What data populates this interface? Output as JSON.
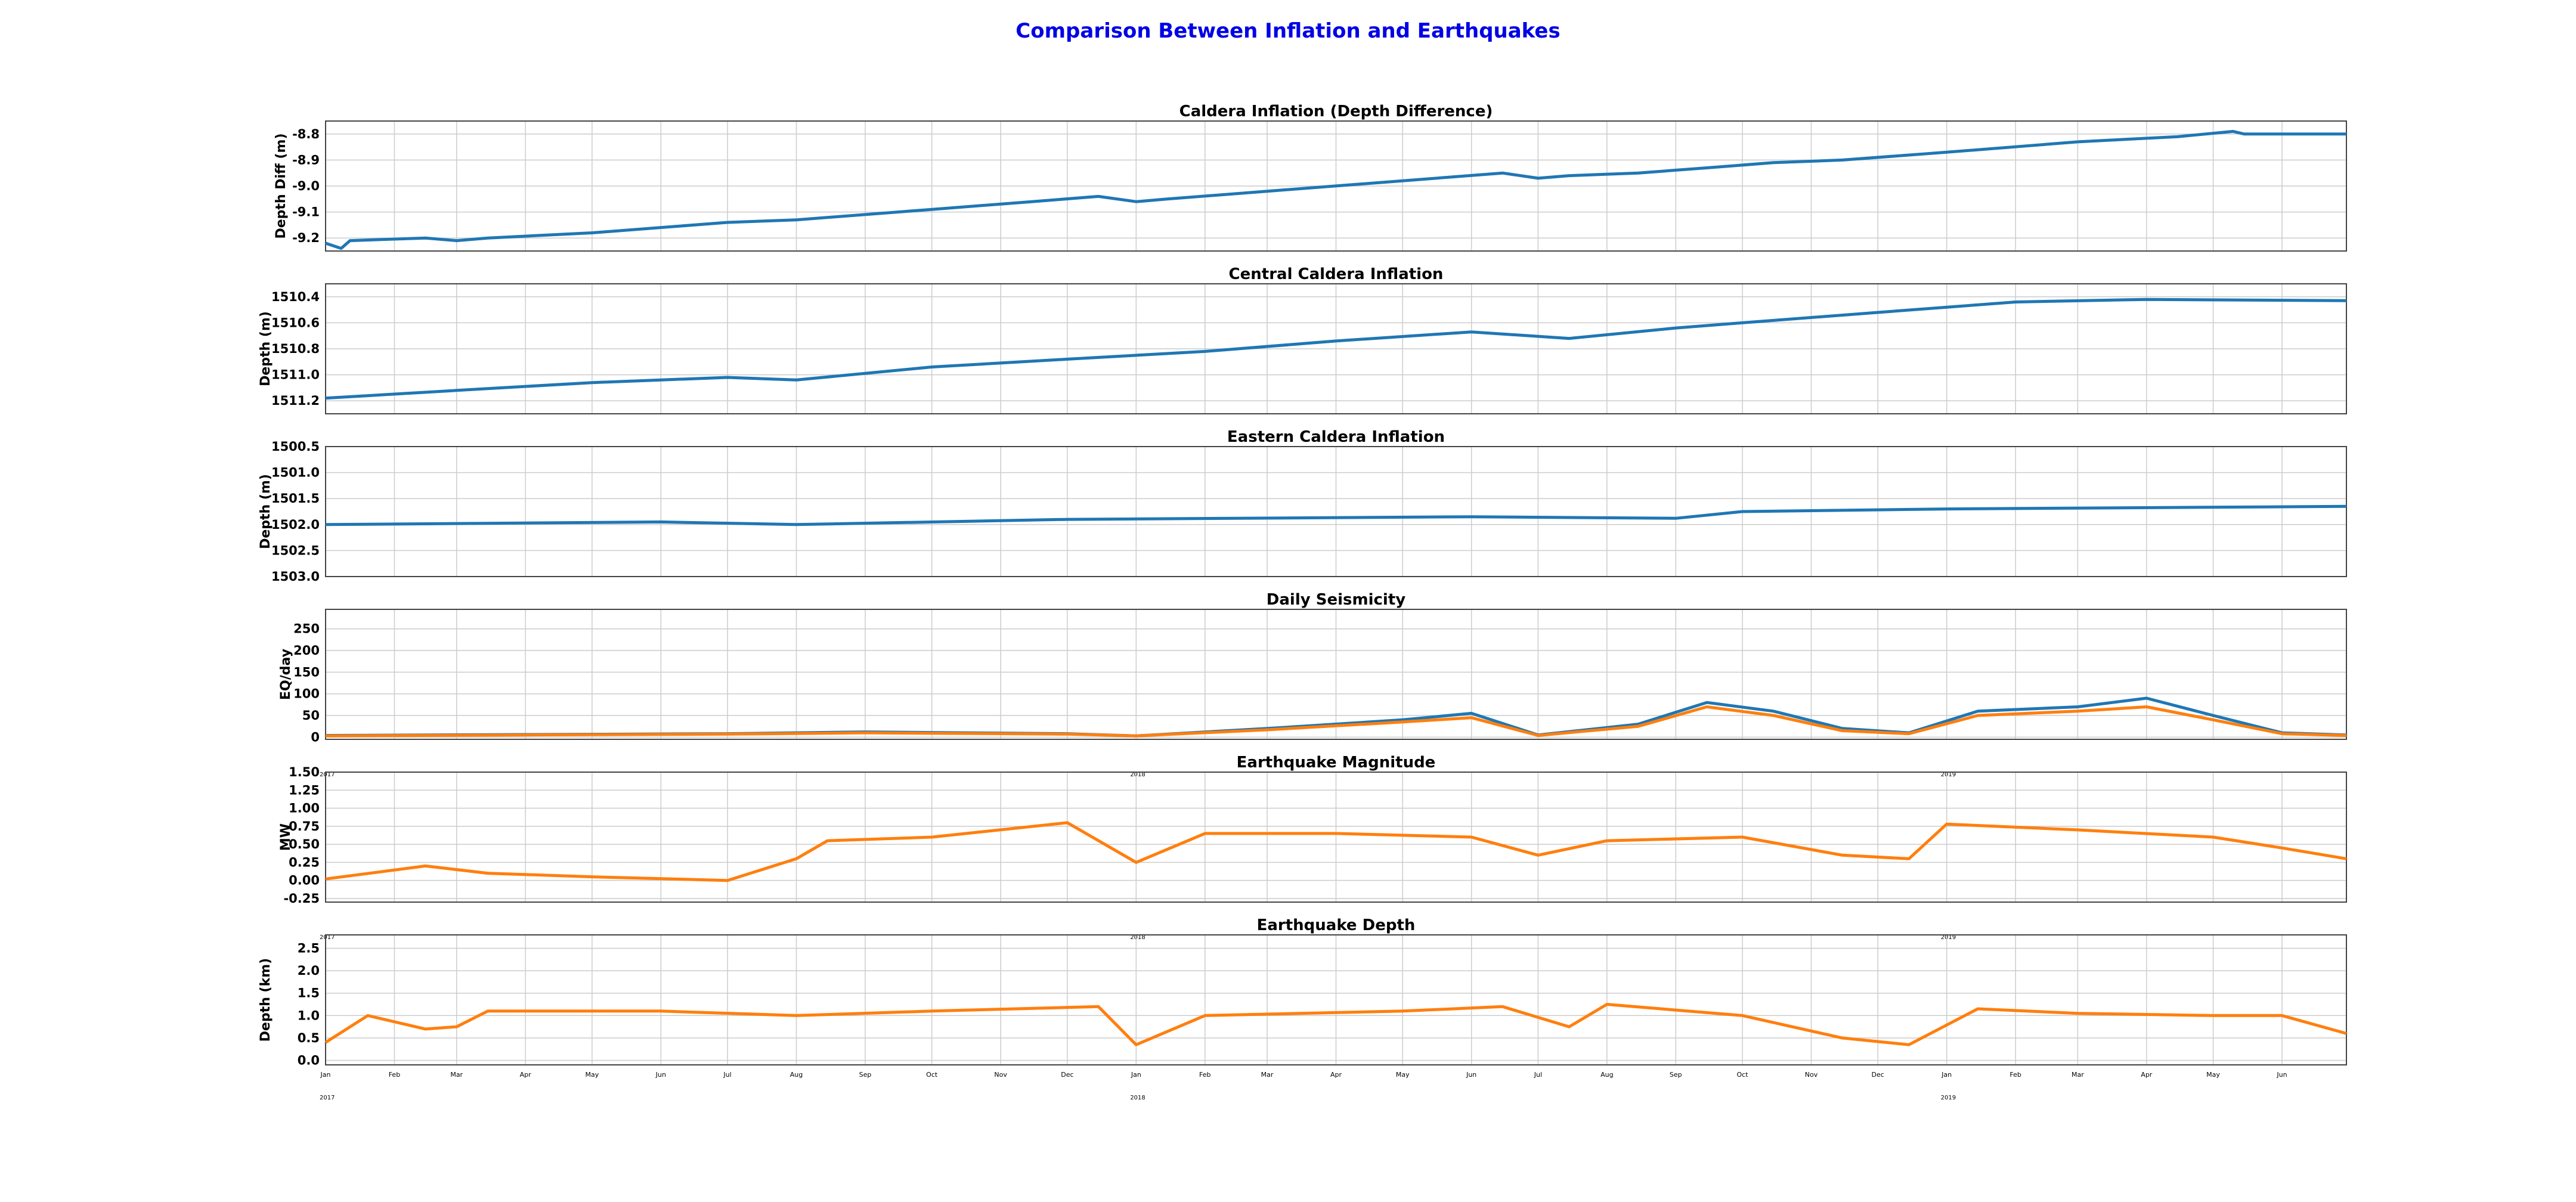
{
  "title": "Comparison Between Inflation and Earthquakes",
  "colors": {
    "title": "#0000e6",
    "raw": "#1f77b4",
    "smooth": "#ff7f0e",
    "grid": "#cccccc"
  },
  "x_axis": {
    "start": "2017-01-01",
    "end": "2019-06-30",
    "month_labels": [
      "Jan",
      "Feb",
      "Mar",
      "Apr",
      "May",
      "Jun",
      "Jul",
      "Aug",
      "Sep",
      "Oct",
      "Nov",
      "Dec",
      "Jan",
      "Feb",
      "Mar",
      "Apr",
      "May",
      "Jun",
      "Jul",
      "Aug",
      "Sep",
      "Oct",
      "Nov",
      "Dec",
      "Jan",
      "Feb",
      "Mar",
      "Apr",
      "May",
      "Jun"
    ],
    "year_labels": [
      "2017",
      "2018",
      "2019"
    ]
  },
  "chart_data": [
    {
      "type": "line",
      "title": "Caldera Inflation (Depth Difference)",
      "ylabel": "Depth Diff (m)",
      "yticks": [
        "-8.8",
        "-8.9",
        "-9.0",
        "-9.1",
        "-9.2"
      ],
      "ylim": [
        -9.25,
        -8.75
      ],
      "inverted": false,
      "grid": true,
      "series": [
        {
          "role": "raw",
          "x": [
            "2017-01-01",
            "2017-01-08",
            "2017-01-12",
            "2017-02-15",
            "2017-03-01",
            "2017-03-15",
            "2017-05-01",
            "2017-07-01",
            "2017-08-01",
            "2017-10-01",
            "2017-11-15",
            "2017-12-15",
            "2018-01-01",
            "2018-01-15",
            "2018-03-01",
            "2018-05-01",
            "2018-06-15",
            "2018-07-01",
            "2018-07-15",
            "2018-08-15",
            "2018-09-15",
            "2018-10-15",
            "2018-11-15",
            "2019-01-01",
            "2019-03-01",
            "2019-04-15",
            "2019-05-10",
            "2019-05-15",
            "2019-06-30"
          ],
          "y": [
            -9.22,
            -9.24,
            -9.21,
            -9.2,
            -9.21,
            -9.2,
            -9.18,
            -9.14,
            -9.13,
            -9.09,
            -9.06,
            -9.04,
            -9.06,
            -9.05,
            -9.02,
            -8.98,
            -8.95,
            -8.97,
            -8.96,
            -8.95,
            -8.93,
            -8.91,
            -8.9,
            -8.87,
            -8.83,
            -8.81,
            -8.79,
            -8.8,
            -8.8
          ]
        }
      ]
    },
    {
      "type": "line",
      "title": "Central Caldera Inflation",
      "ylabel": "Depth (m)",
      "yticks": [
        "1510.4",
        "1510.6",
        "1510.8",
        "1511.0",
        "1511.2"
      ],
      "ylim": [
        1510.3,
        1511.3
      ],
      "inverted": true,
      "grid": true,
      "series": [
        {
          "role": "raw",
          "x": [
            "2017-01-01",
            "2017-03-01",
            "2017-05-01",
            "2017-07-01",
            "2017-08-01",
            "2017-10-01",
            "2017-12-01",
            "2018-02-01",
            "2018-04-01",
            "2018-06-01",
            "2018-07-15",
            "2018-09-01",
            "2018-10-01",
            "2018-12-01",
            "2019-02-01",
            "2019-04-01",
            "2019-06-30"
          ],
          "y": [
            1511.18,
            1511.12,
            1511.06,
            1511.02,
            1511.04,
            1510.94,
            1510.88,
            1510.82,
            1510.74,
            1510.67,
            1510.72,
            1510.64,
            1510.6,
            1510.52,
            1510.44,
            1510.42,
            1510.43
          ]
        }
      ]
    },
    {
      "type": "line",
      "title": "Eastern Caldera Inflation",
      "ylabel": "Depth (m)",
      "yticks": [
        "1500.5",
        "1501.0",
        "1501.5",
        "1502.0",
        "1502.5",
        "1503.0"
      ],
      "ylim": [
        1500.5,
        1503.0
      ],
      "inverted": true,
      "grid": true,
      "series": [
        {
          "role": "raw",
          "x": [
            "2017-01-01",
            "2017-06-01",
            "2017-08-01",
            "2017-12-01",
            "2018-06-01",
            "2018-09-01",
            "2018-10-01",
            "2019-01-01",
            "2019-06-30"
          ],
          "y": [
            1502.0,
            1501.95,
            1502.0,
            1501.9,
            1501.85,
            1501.88,
            1501.75,
            1501.7,
            1501.65
          ]
        }
      ]
    },
    {
      "type": "line",
      "title": "Daily Seismicity",
      "ylabel": "EQ/day",
      "yticks": [
        "250",
        "200",
        "150",
        "100",
        "50",
        "0"
      ],
      "ylim": [
        -5,
        295
      ],
      "inverted": false,
      "grid": true,
      "series": [
        {
          "role": "raw",
          "x": [
            "2017-01-01",
            "2017-04-01",
            "2017-07-01",
            "2017-09-01",
            "2017-12-01",
            "2018-01-01",
            "2018-03-01",
            "2018-05-01",
            "2018-06-01",
            "2018-07-01",
            "2018-08-15",
            "2018-09-15",
            "2018-10-15",
            "2018-11-15",
            "2018-12-15",
            "2019-01-15",
            "2019-03-01",
            "2019-04-01",
            "2019-05-01",
            "2019-06-01",
            "2019-06-30"
          ],
          "y": [
            4,
            6,
            8,
            12,
            8,
            3,
            20,
            40,
            55,
            5,
            30,
            80,
            60,
            20,
            10,
            60,
            70,
            90,
            50,
            10,
            5
          ]
        },
        {
          "role": "smooth",
          "x": [
            "2017-01-01",
            "2017-04-01",
            "2017-07-01",
            "2017-09-01",
            "2017-12-01",
            "2018-01-01",
            "2018-03-01",
            "2018-05-01",
            "2018-06-01",
            "2018-07-01",
            "2018-08-15",
            "2018-09-15",
            "2018-10-15",
            "2018-11-15",
            "2018-12-15",
            "2019-01-15",
            "2019-03-01",
            "2019-04-01",
            "2019-05-01",
            "2019-06-01",
            "2019-06-30"
          ],
          "y": [
            3,
            5,
            7,
            10,
            7,
            3,
            17,
            35,
            45,
            4,
            25,
            70,
            50,
            15,
            8,
            50,
            60,
            70,
            40,
            8,
            4
          ]
        }
      ]
    },
    {
      "type": "line",
      "title": "Earthquake Magnitude",
      "ylabel": "MW",
      "yticks": [
        "1.50",
        "1.25",
        "1.00",
        "0.75",
        "0.50",
        "0.25",
        "0.00",
        "-0.25"
      ],
      "ylim": [
        -0.3,
        1.5
      ],
      "inverted": false,
      "grid": true,
      "series": [
        {
          "role": "smooth",
          "x": [
            "2017-01-01",
            "2017-02-15",
            "2017-03-15",
            "2017-05-01",
            "2017-07-01",
            "2017-08-01",
            "2017-08-15",
            "2017-10-01",
            "2017-12-01",
            "2018-01-01",
            "2018-02-01",
            "2018-04-01",
            "2018-06-01",
            "2018-07-01",
            "2018-08-01",
            "2018-10-01",
            "2018-11-15",
            "2018-12-15",
            "2019-01-01",
            "2019-03-01",
            "2019-05-01",
            "2019-06-01",
            "2019-06-30"
          ],
          "y": [
            0.02,
            0.2,
            0.1,
            0.05,
            0.0,
            0.3,
            0.55,
            0.6,
            0.8,
            0.25,
            0.65,
            0.65,
            0.6,
            0.35,
            0.55,
            0.6,
            0.35,
            0.3,
            0.78,
            0.7,
            0.6,
            0.45,
            0.3
          ]
        }
      ]
    },
    {
      "type": "line",
      "title": "Earthquake Depth",
      "ylabel": "Depth (km)",
      "yticks": [
        "2.5",
        "2.0",
        "1.5",
        "1.0",
        "0.5",
        "0.0"
      ],
      "ylim": [
        -0.1,
        2.8
      ],
      "inverted": false,
      "grid": true,
      "series": [
        {
          "role": "smooth",
          "x": [
            "2017-01-01",
            "2017-01-20",
            "2017-02-15",
            "2017-03-01",
            "2017-03-15",
            "2017-06-01",
            "2017-08-01",
            "2017-10-01",
            "2017-12-15",
            "2018-01-01",
            "2018-02-01",
            "2018-05-01",
            "2018-06-15",
            "2018-07-15",
            "2018-08-01",
            "2018-10-01",
            "2018-11-15",
            "2018-12-15",
            "2019-01-15",
            "2019-03-01",
            "2019-05-01",
            "2019-06-01",
            "2019-06-30"
          ],
          "y": [
            0.4,
            1.0,
            0.7,
            0.75,
            1.1,
            1.1,
            1.0,
            1.1,
            1.2,
            0.35,
            1.0,
            1.1,
            1.2,
            0.75,
            1.25,
            1.0,
            0.5,
            0.35,
            1.15,
            1.05,
            1.0,
            1.0,
            0.6
          ]
        }
      ]
    }
  ]
}
